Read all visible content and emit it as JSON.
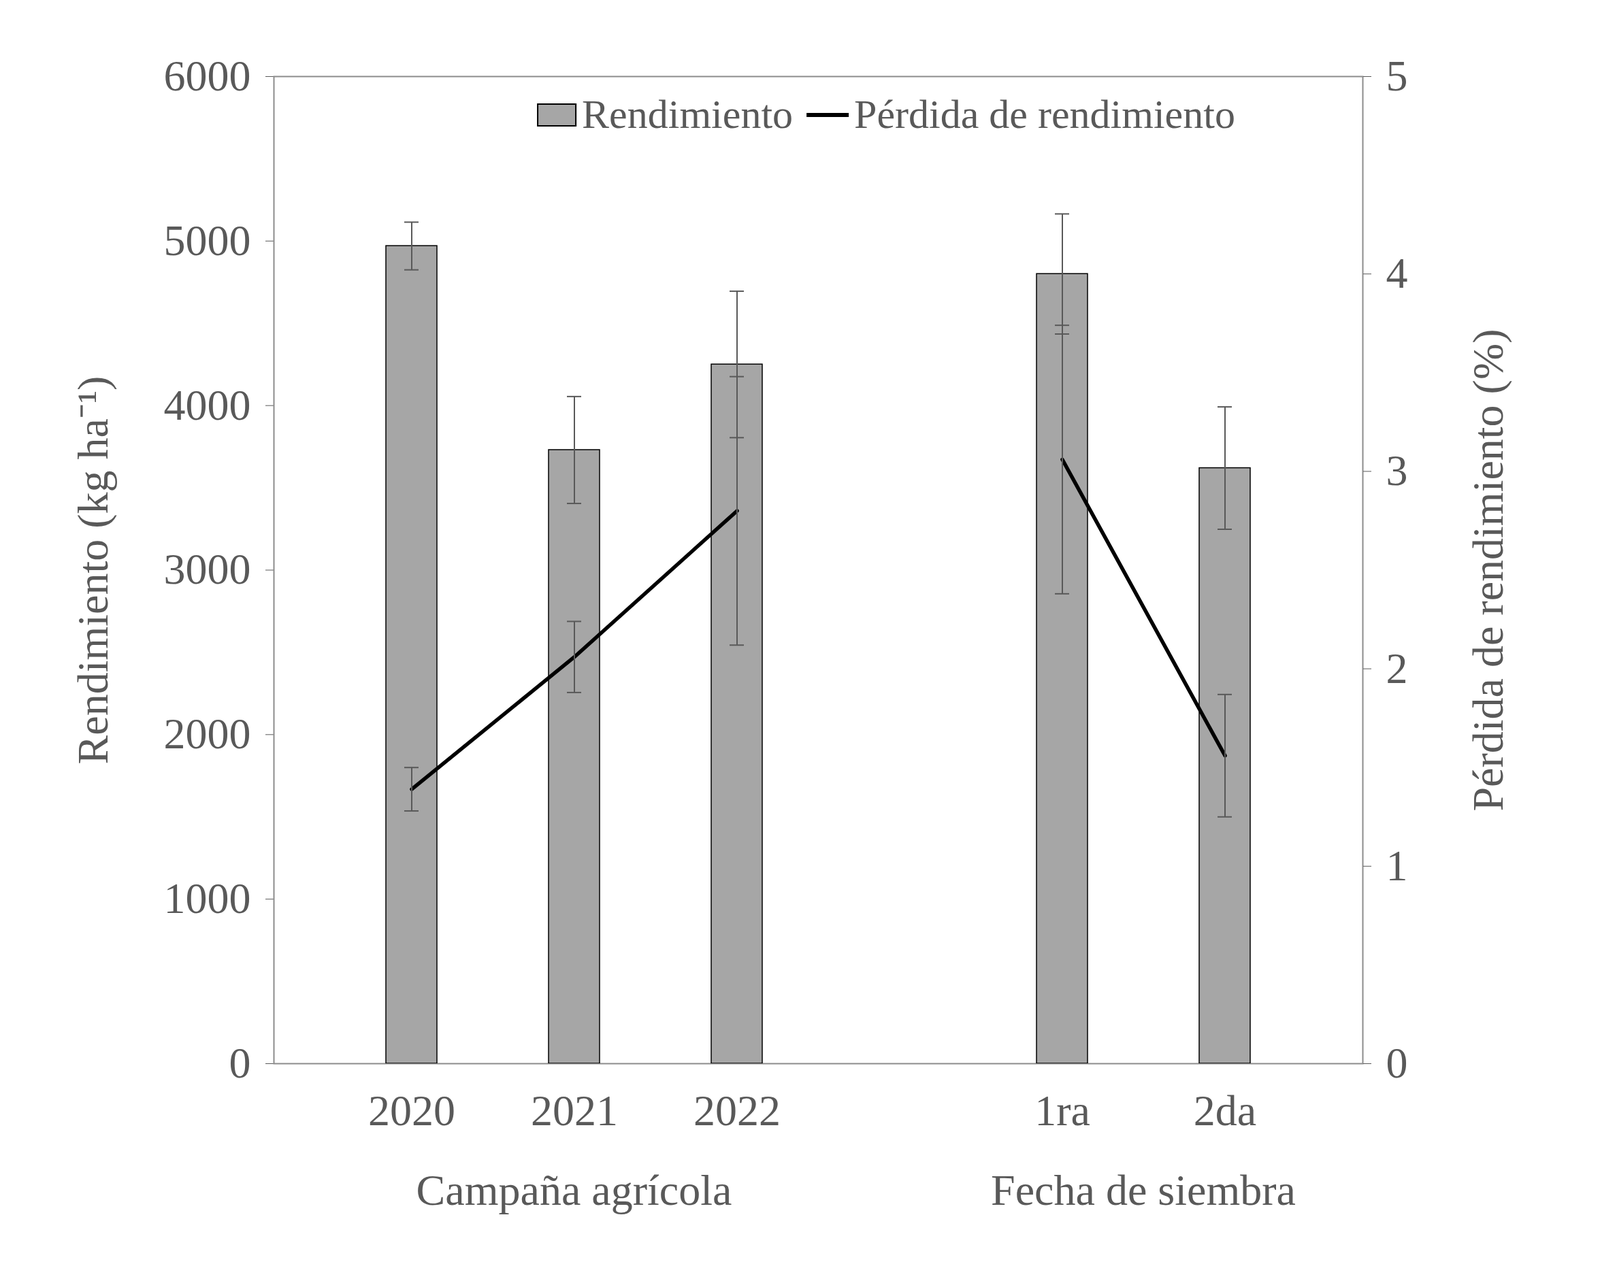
{
  "chart_data": {
    "type": "bar",
    "categories": [
      "2020",
      "2021",
      "2022",
      null,
      "1ra",
      "2da"
    ],
    "x_groups": [
      {
        "label": "Campaña agrícola",
        "categories": [
          "2020",
          "2021",
          "2022"
        ]
      },
      {
        "label": "Fecha de siembra",
        "categories": [
          "1ra",
          "2da"
        ]
      }
    ],
    "ylabel": "Rendimiento (kg ha⁻¹)",
    "y2label": "Pérdida de rendimiento (%)",
    "ylim": [
      0,
      6000
    ],
    "yticks": [
      0,
      1000,
      2000,
      3000,
      4000,
      5000,
      6000
    ],
    "y2lim": [
      0,
      5
    ],
    "y2ticks": [
      0,
      1,
      2,
      3,
      4,
      5
    ],
    "legend": "top",
    "grid": false,
    "series": [
      {
        "name": "Rendimiento",
        "type": "bar",
        "color": "#a6a6a6",
        "values": [
          4970,
          3730,
          4250,
          null,
          4800,
          3620
        ],
        "errors": [
          145,
          325,
          445,
          null,
          365,
          372
        ]
      },
      {
        "name": "Pérdida de rendimiento",
        "type": "line",
        "axis": "y2",
        "color": "#000000",
        "values": [
          1.39,
          2.06,
          2.8,
          null,
          3.06,
          1.56
        ],
        "errors": [
          0.11,
          0.18,
          0.68,
          null,
          0.68,
          0.31
        ]
      }
    ]
  }
}
